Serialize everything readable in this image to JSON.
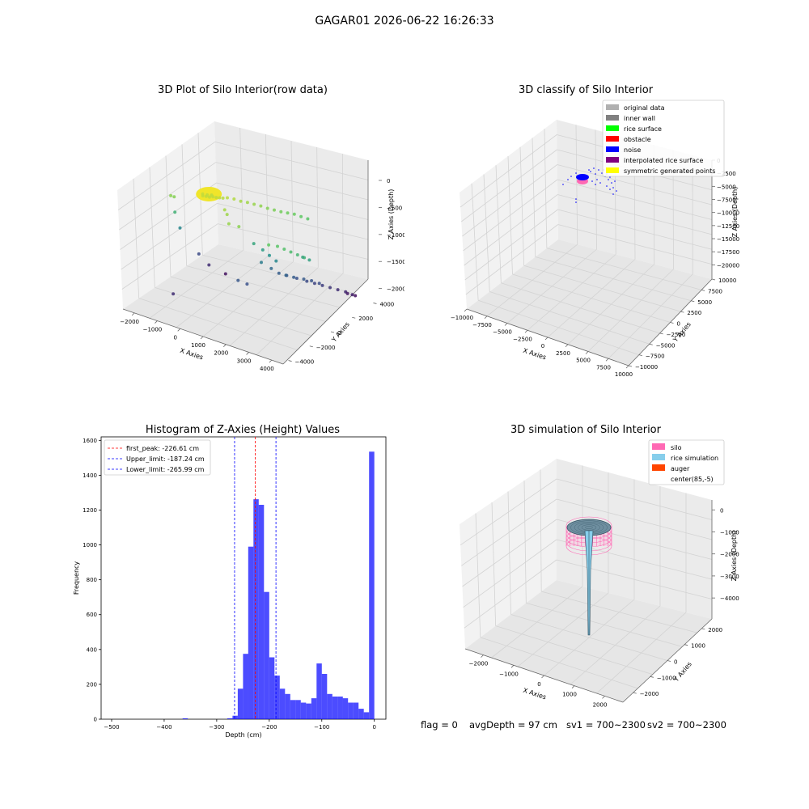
{
  "suptitle": "GAGAR01 2026-06-22 16:26:33",
  "chart_data": [
    {
      "type": "scatter",
      "panel": "top-left",
      "title": "3D Plot of Silo Interior(row data)",
      "xlabel": "X Axies",
      "ylabel": "Y Axies",
      "zlabel": "Z Axies (Depth)",
      "xticks": [
        "−2000",
        "−1000",
        "0",
        "1000",
        "2000",
        "3000",
        "4000"
      ],
      "yticks": [
        "−4000",
        "−2000",
        "0",
        "2000",
        "4000"
      ],
      "zticks": [
        "0",
        "−500",
        "−1000",
        "−1500",
        "−2000"
      ],
      "xlim": [
        -2500,
        4500
      ],
      "ylim": [
        -4500,
        4500
      ],
      "zlim": [
        -2200,
        0
      ],
      "colormap": "viridis",
      "points": [
        {
          "x": -400,
          "y": -1500,
          "z": -200
        },
        {
          "x": -300,
          "y": -1400,
          "z": -210
        },
        {
          "x": -200,
          "y": -1300,
          "z": -220
        },
        {
          "x": -100,
          "y": -1200,
          "z": -215
        },
        {
          "x": 0,
          "y": -1100,
          "z": -225
        },
        {
          "x": 100,
          "y": -1000,
          "z": -230
        },
        {
          "x": 200,
          "y": -900,
          "z": -235
        },
        {
          "x": -500,
          "y": -1300,
          "z": -205
        },
        {
          "x": -350,
          "y": -1200,
          "z": -215
        },
        {
          "x": -250,
          "y": -1000,
          "z": -230
        },
        {
          "x": 300,
          "y": -700,
          "z": -240
        },
        {
          "x": 500,
          "y": -500,
          "z": -260
        },
        {
          "x": 700,
          "y": -300,
          "z": -300
        },
        {
          "x": 900,
          "y": -100,
          "z": -320
        },
        {
          "x": 1100,
          "y": 100,
          "z": -350
        },
        {
          "x": 1300,
          "y": 300,
          "z": -380
        },
        {
          "x": 1500,
          "y": 500,
          "z": -420
        },
        {
          "x": 1700,
          "y": 700,
          "z": -450
        },
        {
          "x": 1900,
          "y": 900,
          "z": -480
        },
        {
          "x": 2100,
          "y": 1100,
          "z": -500
        },
        {
          "x": 2300,
          "y": 1300,
          "z": -520
        },
        {
          "x": 2500,
          "y": 1500,
          "z": -560
        },
        {
          "x": 2700,
          "y": 1700,
          "z": -600
        },
        {
          "x": -1800,
          "y": -1500,
          "z": -400
        },
        {
          "x": -1700,
          "y": -1400,
          "z": -420
        },
        {
          "x": -1900,
          "y": -900,
          "z": -800
        },
        {
          "x": -2000,
          "y": -200,
          "z": -1200
        },
        {
          "x": -1500,
          "y": 500,
          "z": -1700
        },
        {
          "x": -1200,
          "y": 800,
          "z": -1900
        },
        {
          "x": -800,
          "y": 1500,
          "z": -2100
        },
        {
          "x": 1500,
          "y": -800,
          "z": -900
        },
        {
          "x": 1800,
          "y": -600,
          "z": -1000
        },
        {
          "x": 2000,
          "y": -400,
          "z": -1100
        },
        {
          "x": 2200,
          "y": -200,
          "z": -1200
        },
        {
          "x": 1600,
          "y": -300,
          "z": -1300
        },
        {
          "x": 1800,
          "y": 200,
          "z": -1450
        },
        {
          "x": 2000,
          "y": 500,
          "z": -1550
        },
        {
          "x": 2200,
          "y": 800,
          "z": -1600
        },
        {
          "x": 2500,
          "y": 1100,
          "z": -1650
        },
        {
          "x": 2800,
          "y": 1400,
          "z": -1700
        },
        {
          "x": 3000,
          "y": 1700,
          "z": -1750
        },
        {
          "x": 3200,
          "y": 2000,
          "z": -1800
        },
        {
          "x": 3400,
          "y": 2300,
          "z": -1850
        },
        {
          "x": 3600,
          "y": 2600,
          "z": -1900
        },
        {
          "x": 3800,
          "y": 2900,
          "z": -1950
        },
        {
          "x": 4000,
          "y": 3100,
          "z": -2000
        },
        {
          "x": 3700,
          "y": 3300,
          "z": -2050
        },
        {
          "x": 3900,
          "y": 3600,
          "z": -2100
        },
        {
          "x": 2400,
          "y": 300,
          "z": -1500
        },
        {
          "x": 2600,
          "y": 600,
          "z": -1550
        },
        {
          "x": 2900,
          "y": 900,
          "z": -1580
        },
        {
          "x": 3100,
          "y": 1200,
          "z": -1620
        },
        {
          "x": 3300,
          "y": 1500,
          "z": -1680
        },
        {
          "x": 1000,
          "y": -1200,
          "z": -1600
        },
        {
          "x": 1300,
          "y": -1000,
          "z": -1650
        },
        {
          "x": 3000,
          "y": -1800,
          "z": -600
        },
        {
          "x": 3200,
          "y": -1600,
          "z": -650
        },
        {
          "x": 3400,
          "y": -1400,
          "z": -700
        },
        {
          "x": 3600,
          "y": -1200,
          "z": -750
        },
        {
          "x": 3800,
          "y": -1000,
          "z": -800
        },
        {
          "x": 3500,
          "y": -500,
          "z": -900
        },
        {
          "x": 3700,
          "y": -300,
          "z": -950
        },
        {
          "x": 2800,
          "y": -2200,
          "z": -550
        },
        {
          "x": 1200,
          "y": -2500,
          "z": -350
        },
        {
          "x": 1500,
          "y": -2200,
          "z": -400
        },
        {
          "x": 800,
          "y": -1800,
          "z": -330
        },
        {
          "x": 600,
          "y": -1600,
          "z": -300
        },
        {
          "x": -1000,
          "y": -3000,
          "z": -1900
        }
      ]
    },
    {
      "type": "scatter",
      "panel": "top-right",
      "title": "3D classify of Silo Interior",
      "xlabel": "X Axies",
      "ylabel": "Y Axies",
      "zlabel": "Z Axies (Depth)",
      "xticks": [
        "−10000",
        "−7500",
        "−5000",
        "−2500",
        "0",
        "2500",
        "5000",
        "7500",
        "10000"
      ],
      "yticks": [
        "−10000",
        "−7500",
        "−5000",
        "−2500",
        "0",
        "2500",
        "5000",
        "7500",
        "10000"
      ],
      "zticks": [
        "0",
        "−2500",
        "−5000",
        "−7500",
        "−10000",
        "−12500",
        "−15000",
        "−17500",
        "−20000"
      ],
      "xlim": [
        -10000,
        10000
      ],
      "ylim": [
        -10000,
        10000
      ],
      "zlim": [
        -20000,
        0
      ],
      "legend_placement": "top-right",
      "legend": [
        {
          "label": "original data",
          "color": "#b0b0b0"
        },
        {
          "label": "inner wall",
          "color": "#808080"
        },
        {
          "label": "rice surface",
          "color": "#00ff00"
        },
        {
          "label": "obstacle",
          "color": "#ff0000"
        },
        {
          "label": "noise",
          "color": "#0000ff"
        },
        {
          "label": "interpolated rice surface",
          "color": "#800080"
        },
        {
          "label": "symmetric generated points",
          "color": "#ffff00"
        }
      ]
    },
    {
      "type": "bar",
      "panel": "bottom-left",
      "title": "Histogram of Z-Axies (Height) Values",
      "xlabel": "Depth (cm)",
      "ylabel": "Frequency",
      "xlim": [
        -520,
        22
      ],
      "ylim": [
        0,
        1620
      ],
      "xticks": [
        -500,
        -400,
        -300,
        -200,
        -100,
        0
      ],
      "xtick_labels": [
        "−500",
        "−400",
        "−300",
        "−200",
        "−100",
        "0"
      ],
      "yticks": [
        0,
        200,
        400,
        600,
        800,
        1000,
        1200,
        1400,
        1600
      ],
      "bar_color": "#0000ff",
      "bin_edges": [
        -270,
        -260,
        -250,
        -240,
        -230,
        -220,
        -210,
        -200,
        -190,
        -180,
        -170,
        -160,
        -150,
        -140,
        -130,
        -120,
        -110,
        -100,
        -90,
        -80,
        -70,
        -60,
        -50,
        -40,
        -30,
        -20,
        -10,
        0
      ],
      "bins": [
        {
          "start": -365,
          "end": -355,
          "count": 5
        },
        {
          "start": -280,
          "end": -270,
          "count": 5
        },
        {
          "start": -270,
          "end": -260,
          "count": 20
        },
        {
          "start": -260,
          "end": -250,
          "count": 175
        },
        {
          "start": -250,
          "end": -240,
          "count": 375
        },
        {
          "start": -240,
          "end": -230,
          "count": 990
        },
        {
          "start": -230,
          "end": -220,
          "count": 1262
        },
        {
          "start": -220,
          "end": -210,
          "count": 1230
        },
        {
          "start": -210,
          "end": -200,
          "count": 730
        },
        {
          "start": -200,
          "end": -190,
          "count": 355
        },
        {
          "start": -190,
          "end": -180,
          "count": 250
        },
        {
          "start": -180,
          "end": -170,
          "count": 175
        },
        {
          "start": -170,
          "end": -160,
          "count": 145
        },
        {
          "start": -160,
          "end": -150,
          "count": 110
        },
        {
          "start": -150,
          "end": -140,
          "count": 110
        },
        {
          "start": -140,
          "end": -130,
          "count": 95
        },
        {
          "start": -130,
          "end": -120,
          "count": 90
        },
        {
          "start": -120,
          "end": -110,
          "count": 120
        },
        {
          "start": -110,
          "end": -100,
          "count": 320
        },
        {
          "start": -100,
          "end": -90,
          "count": 260
        },
        {
          "start": -90,
          "end": -80,
          "count": 145
        },
        {
          "start": -80,
          "end": -70,
          "count": 130
        },
        {
          "start": -70,
          "end": -60,
          "count": 130
        },
        {
          "start": -60,
          "end": -50,
          "count": 120
        },
        {
          "start": -50,
          "end": -40,
          "count": 95
        },
        {
          "start": -40,
          "end": -30,
          "count": 95
        },
        {
          "start": -30,
          "end": -20,
          "count": 60
        },
        {
          "start": -20,
          "end": -10,
          "count": 40
        },
        {
          "start": -10,
          "end": 0,
          "count": 1535
        }
      ],
      "vlines": [
        {
          "label": "first_peak: -226.61 cm",
          "x": -226.61,
          "color": "#ff0000"
        },
        {
          "label": "Upper_limit: -187.24 cm",
          "x": -187.24,
          "color": "#0000ff"
        },
        {
          "label": "Lower_limit: -265.99 cm",
          "x": -265.99,
          "color": "#0000ff"
        }
      ],
      "legend_placement": "top-left"
    },
    {
      "type": "surface",
      "panel": "bottom-right",
      "title": "3D simulation of Silo Interior",
      "xlabel": "X Axies",
      "ylabel": "Y Axies",
      "zlabel": "Z Axies (Depth)",
      "xticks": [
        "−2000",
        "−1000",
        "0",
        "1000",
        "2000"
      ],
      "yticks": [
        "−2000",
        "−1000",
        "0",
        "1000",
        "2000"
      ],
      "zticks": [
        "0",
        "−1000",
        "−2000",
        "−3000",
        "−4000"
      ],
      "legend_placement": "top-right",
      "legend": [
        {
          "label": "silo",
          "color": "#ff69b4"
        },
        {
          "label": "rice simulation",
          "color": "#87ceeb"
        },
        {
          "label": "auger",
          "color": "#ff4500"
        },
        {
          "label": "center(85,-5)",
          "color": "#ffffff"
        }
      ]
    }
  ],
  "footer": {
    "flag": "flag = 0",
    "avgDepth": "avgDepth = 97 cm",
    "sv1": "sv1 = 700~2300",
    "sv2": "sv2 = 700~2300"
  }
}
